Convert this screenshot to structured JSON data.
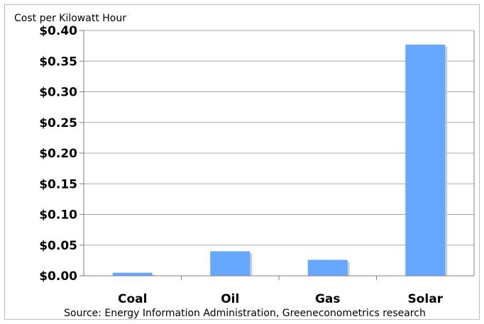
{
  "chart_data": {
    "type": "bar",
    "title": "",
    "ylabel": "Cost per Kilowatt Hour",
    "xlabel": "",
    "categories": [
      "Coal",
      "Oil",
      "Gas",
      "Solar"
    ],
    "values": [
      0.005,
      0.04,
      0.026,
      0.377
    ],
    "ylim": [
      0,
      0.4
    ],
    "yticks": [
      0.0,
      0.05,
      0.1,
      0.15,
      0.2,
      0.25,
      0.3,
      0.35,
      0.4
    ],
    "ytick_labels": [
      "$0.00",
      "$0.05",
      "$0.10",
      "$0.15",
      "$0.20",
      "$0.25",
      "$0.30",
      "$0.35",
      "$0.40"
    ],
    "grid": true,
    "legend": "none",
    "source": "Source: Energy Information Administration, Greeneconometrics research",
    "colors": {
      "bar": "#66a8ff",
      "bar_shadow": "#c9cdd4",
      "grid": "#a9a9a9",
      "axis": "#808080"
    }
  }
}
